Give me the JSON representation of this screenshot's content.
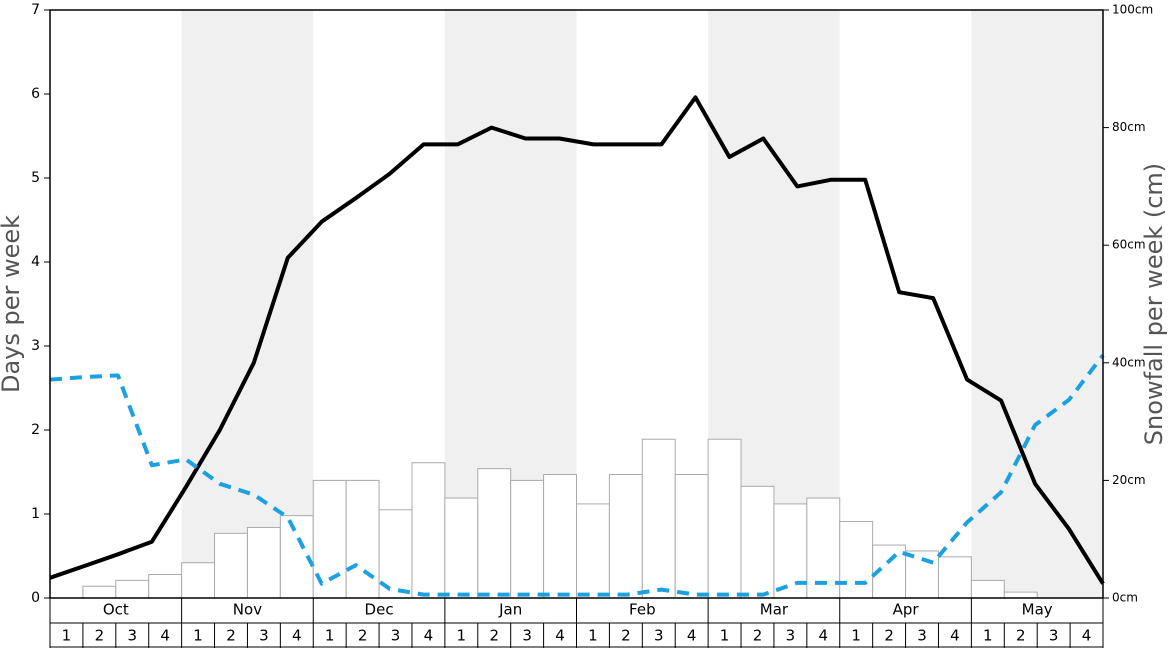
{
  "chart_data": {
    "type": "bar_line",
    "ylabel": "Days per week",
    "y2label": "Snowfall per week (cm)",
    "months": [
      "Oct",
      "Nov",
      "Dec",
      "Jan",
      "Feb",
      "Mar",
      "Apr",
      "May"
    ],
    "categories": [
      "1",
      "2",
      "3",
      "4",
      "1",
      "2",
      "3",
      "4",
      "1",
      "2",
      "3",
      "4",
      "1",
      "2",
      "3",
      "4",
      "1",
      "2",
      "3",
      "4",
      "1",
      "2",
      "3",
      "4",
      "1",
      "2",
      "3",
      "4",
      "1",
      "2",
      "3",
      "4"
    ],
    "ylim": [
      0,
      7
    ],
    "yticks": [
      0,
      1,
      2,
      3,
      4,
      5,
      6,
      7
    ],
    "y2lim": [
      0,
      100
    ],
    "y2ticks": [
      {
        "value": 0,
        "label": "0cm"
      },
      {
        "value": 20,
        "label": "20cm"
      },
      {
        "value": 40,
        "label": "40cm"
      },
      {
        "value": 60,
        "label": "60cm"
      },
      {
        "value": 80,
        "label": "80cm"
      },
      {
        "value": 100,
        "label": "100cm"
      }
    ],
    "series": [
      {
        "type": "bar",
        "axis": "y2",
        "color": "#ffffff",
        "values": [
          0,
          2,
          3,
          4,
          6,
          11,
          12,
          14,
          20,
          20,
          15,
          23,
          17,
          22,
          20,
          21,
          16,
          21,
          27,
          21,
          27,
          19,
          16,
          17,
          13,
          9,
          8,
          7,
          3,
          1,
          0,
          0
        ]
      },
      {
        "type": "line",
        "color": "#000000",
        "values": [
          0.24,
          0.38,
          0.52,
          0.67,
          1.32,
          2.0,
          2.8,
          4.05,
          4.48,
          4.76,
          5.05,
          5.4,
          5.4,
          5.6,
          5.47,
          5.47,
          5.4,
          5.4,
          5.4,
          5.96,
          5.25,
          5.47,
          4.9,
          4.98,
          4.98,
          3.64,
          3.57,
          2.6,
          2.35,
          1.36,
          0.82,
          0.17
        ]
      },
      {
        "type": "line",
        "dashed": true,
        "color": "#1ba1e2",
        "values": [
          2.6,
          2.63,
          2.65,
          1.58,
          1.65,
          1.36,
          1.23,
          0.96,
          0.17,
          0.39,
          0.11,
          0.04,
          0.04,
          0.04,
          0.04,
          0.04,
          0.04,
          0.04,
          0.1,
          0.04,
          0.04,
          0.04,
          0.18,
          0.18,
          0.18,
          0.55,
          0.42,
          0.9,
          1.26,
          2.06,
          2.36,
          2.89
        ]
      }
    ]
  }
}
